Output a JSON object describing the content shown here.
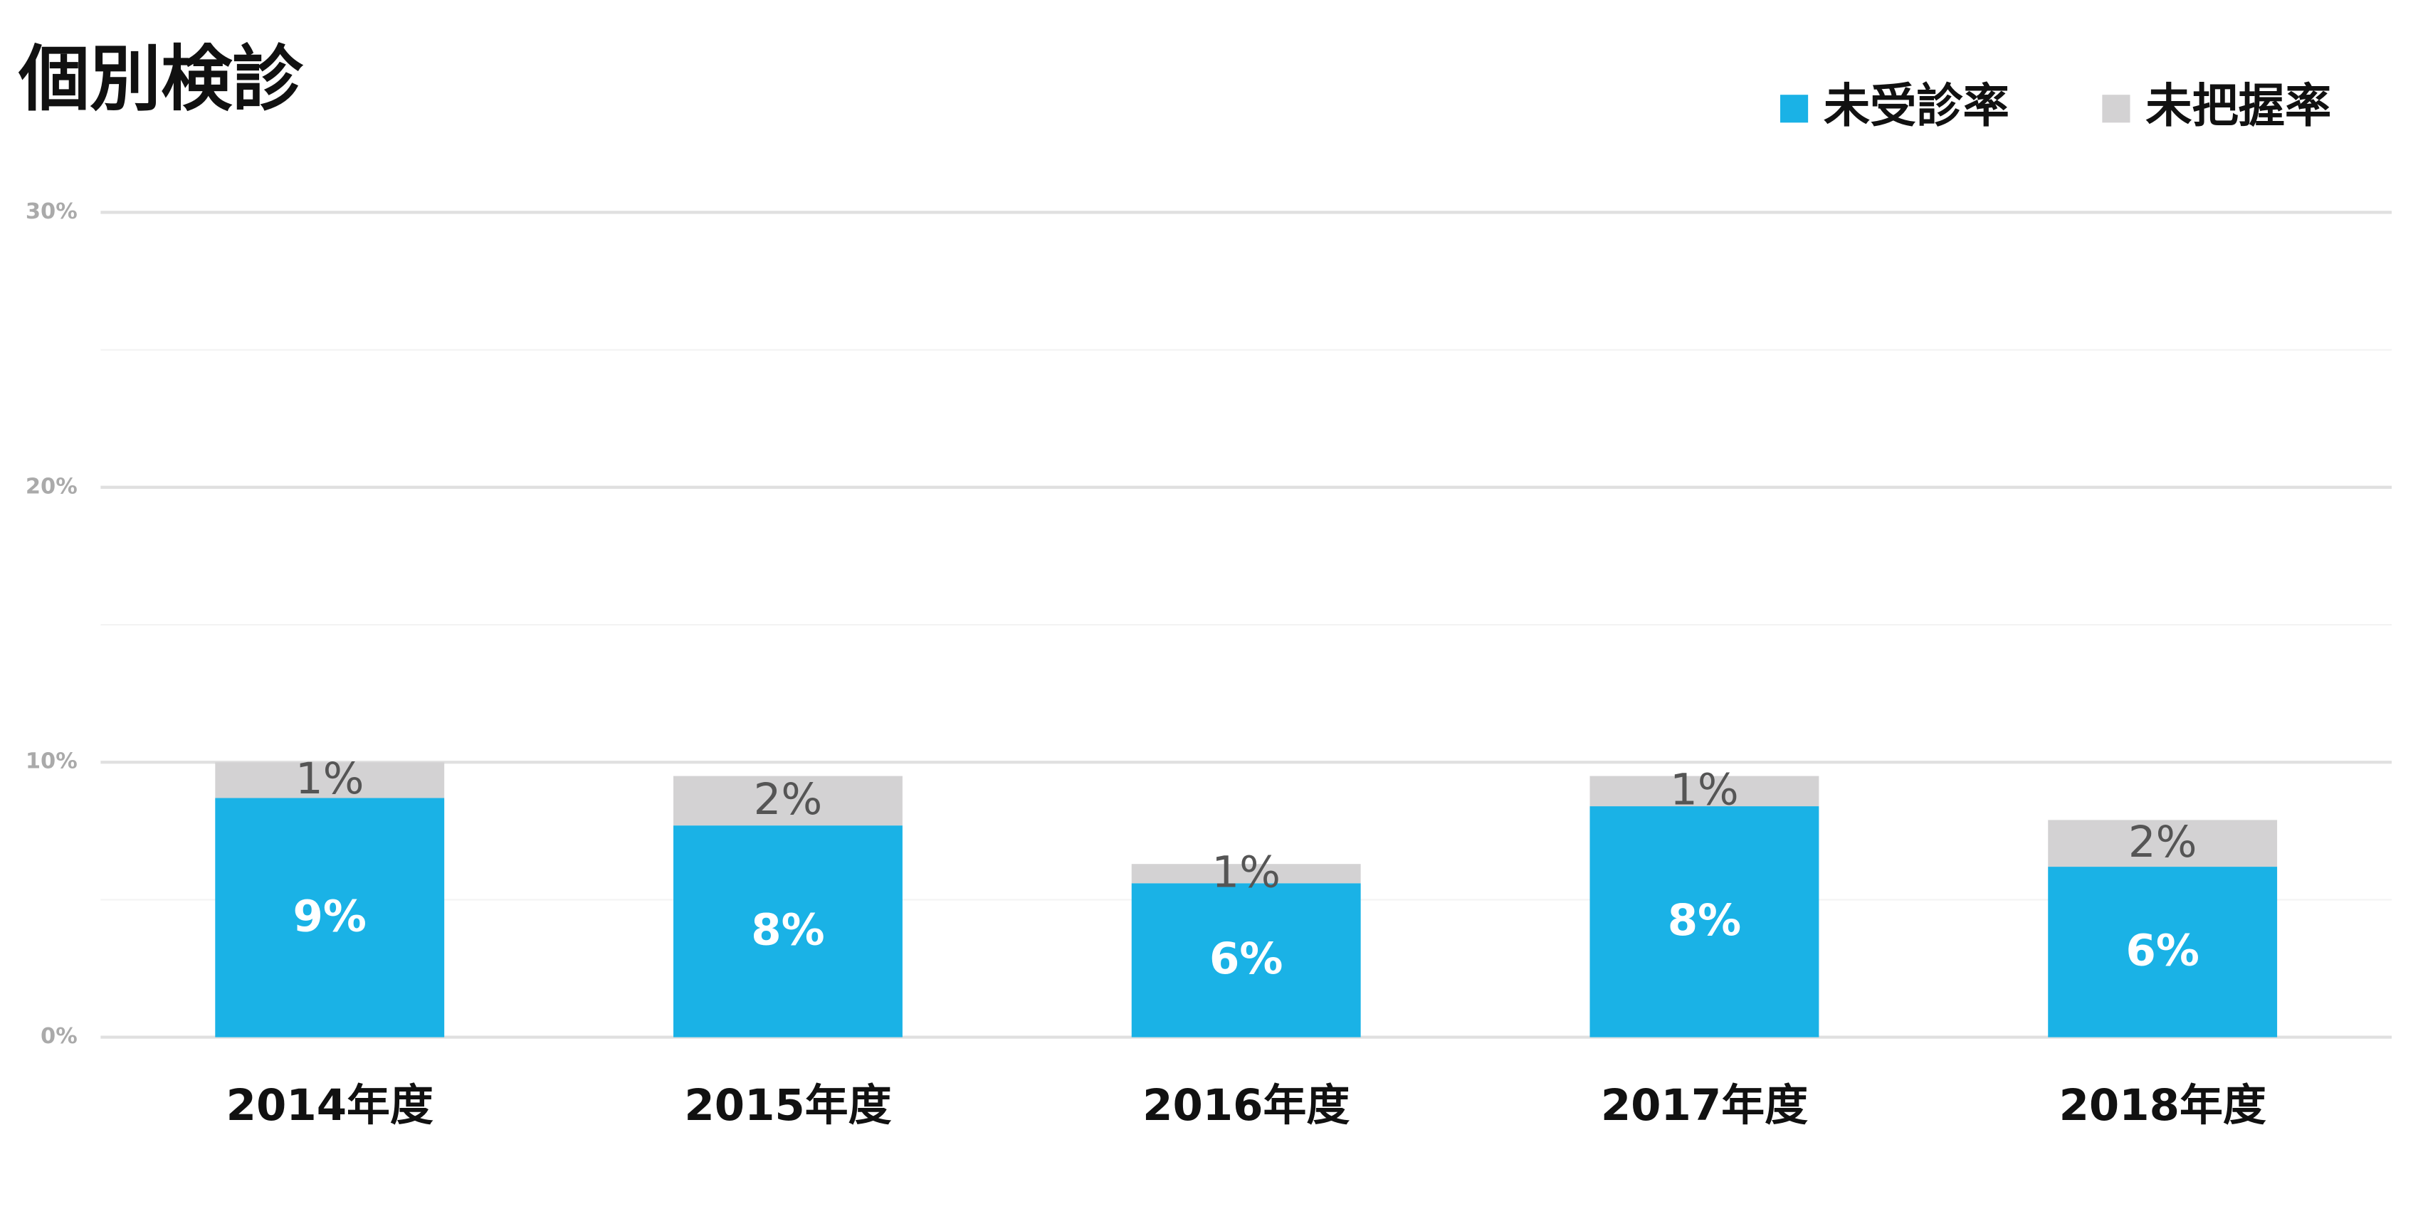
{
  "chart_data": {
    "type": "stacked_bar",
    "title": "個別検診",
    "categories": [
      "2014年度",
      "2015年度",
      "2016年度",
      "2017年度",
      "2018年度"
    ],
    "series": [
      {
        "name": "未受診率",
        "color": "#1ab2e6",
        "values": [
          8.7,
          7.7,
          5.6,
          8.4,
          6.2
        ],
        "value_labels": [
          "9%",
          "8%",
          "6%",
          "8%",
          "6%"
        ]
      },
      {
        "name": "未把握率",
        "color": "#d3d2d3",
        "values": [
          1.3,
          1.8,
          0.7,
          1.1,
          1.7
        ],
        "value_labels": [
          "1%",
          "2%",
          "1%",
          "1%",
          "2%"
        ]
      }
    ],
    "ylim": [
      0,
      30
    ],
    "yticks": [
      {
        "value": 0,
        "label": "0%"
      },
      {
        "value": 10,
        "label": "10%"
      },
      {
        "value": 20,
        "label": "20%"
      },
      {
        "value": 30,
        "label": "30%"
      }
    ],
    "minor_yticks": [
      5,
      15,
      25
    ],
    "grid": true,
    "legend": "top-right"
  }
}
